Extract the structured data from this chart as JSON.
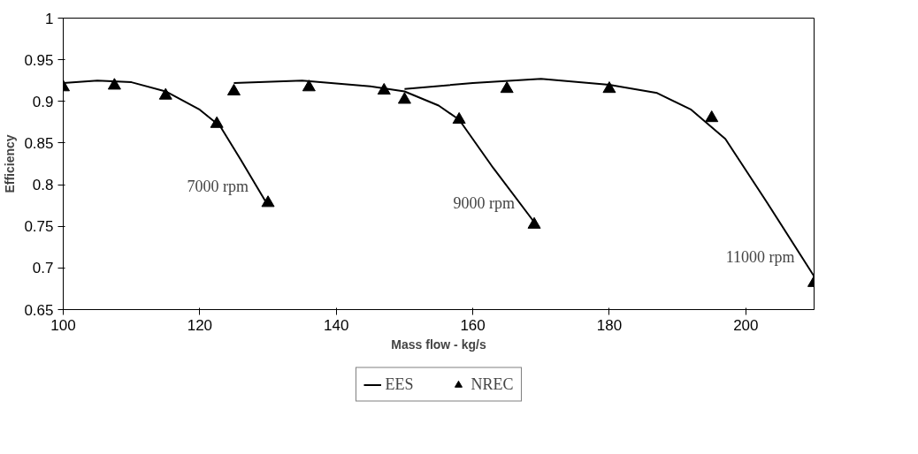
{
  "chart_data": {
    "type": "line",
    "xlabel": "Mass flow - kg/s",
    "ylabel": "Efficiency",
    "xlim": [
      100,
      210
    ],
    "ylim": [
      0.65,
      1
    ],
    "xticks": [
      100,
      120,
      140,
      160,
      180,
      200
    ],
    "yticks": [
      0.65,
      0.7,
      0.75,
      0.8,
      0.85,
      0.9,
      0.95,
      1
    ],
    "grid": false,
    "legend": "bottom",
    "series": [
      {
        "name": "EES",
        "color": "#000000",
        "x": [
          100,
          105,
          110,
          115,
          120,
          123,
          126,
          130
        ],
        "values": [
          0.922,
          0.925,
          0.923,
          0.912,
          0.89,
          0.87,
          0.83,
          0.775
        ]
      },
      {
        "color": "#000000",
        "x": [
          125,
          135,
          145,
          150,
          155,
          158,
          163,
          169
        ],
        "values": [
          0.922,
          0.925,
          0.918,
          0.912,
          0.895,
          0.878,
          0.82,
          0.755
        ]
      },
      {
        "color": "#000000",
        "x": [
          150,
          160,
          170,
          180,
          187,
          192,
          197,
          203,
          210
        ],
        "values": [
          0.915,
          0.922,
          0.927,
          0.92,
          0.91,
          0.89,
          0.855,
          0.78,
          0.69
        ]
      },
      {
        "name": "NREC",
        "type": "scatter",
        "color": "#000000",
        "marker": "triangle",
        "x": [
          100,
          107.5,
          115,
          122.5,
          130,
          125,
          136,
          147,
          150,
          158,
          169,
          165,
          180,
          195,
          210
        ],
        "values": [
          0.917,
          0.919,
          0.907,
          0.873,
          0.778,
          0.912,
          0.917,
          0.913,
          0.902,
          0.878,
          0.752,
          0.915,
          0.915,
          0.88,
          0.682
        ]
      }
    ],
    "annotations": [
      "7000 rpm",
      "9000 rpm",
      "11000 rpm"
    ]
  }
}
